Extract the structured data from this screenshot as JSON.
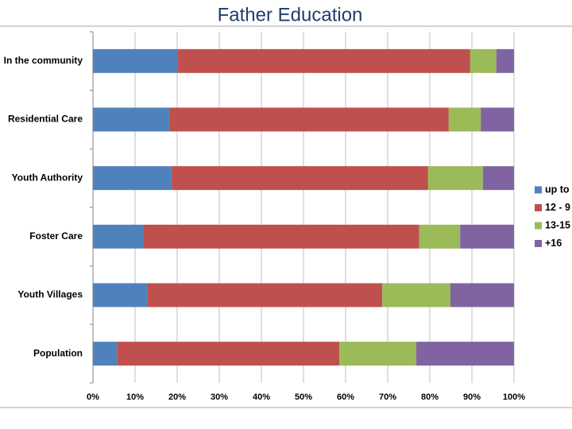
{
  "chart_data": {
    "type": "stacked-bar-horizontal",
    "title": "Father Education",
    "categories": [
      "In the community",
      "Residential Care",
      "Youth Authority",
      "Foster Care",
      "Youth Villages",
      "Population"
    ],
    "series": [
      {
        "name": "up to",
        "color": "#4f81bd",
        "values": [
          20.2,
          18.1,
          18.7,
          11.9,
          13.0,
          5.7
        ]
      },
      {
        "name": "12 - 9",
        "color": "#c0504d",
        "values": [
          69.4,
          66.4,
          60.9,
          65.6,
          55.7,
          52.8
        ]
      },
      {
        "name": "13-15",
        "color": "#9bbb59",
        "values": [
          6.2,
          7.6,
          13.0,
          9.7,
          16.2,
          18.3
        ]
      },
      {
        "name": "+16",
        "color": "#8064a2",
        "values": [
          4.2,
          7.9,
          7.4,
          12.8,
          15.1,
          23.2
        ]
      }
    ],
    "xlim": [
      0,
      100
    ],
    "xticks": [
      {
        "value": 0,
        "label": "0%"
      },
      {
        "value": 10,
        "label": "10%"
      },
      {
        "value": 20,
        "label": "20%"
      },
      {
        "value": 30,
        "label": "30%"
      },
      {
        "value": 40,
        "label": "40%"
      },
      {
        "value": 50,
        "label": "50%"
      },
      {
        "value": 60,
        "label": "60%"
      },
      {
        "value": 70,
        "label": "70%"
      },
      {
        "value": 80,
        "label": "80%"
      },
      {
        "value": 90,
        "label": "90%"
      },
      {
        "value": 100,
        "label": "100%"
      }
    ],
    "grid": true,
    "legend": "right"
  }
}
